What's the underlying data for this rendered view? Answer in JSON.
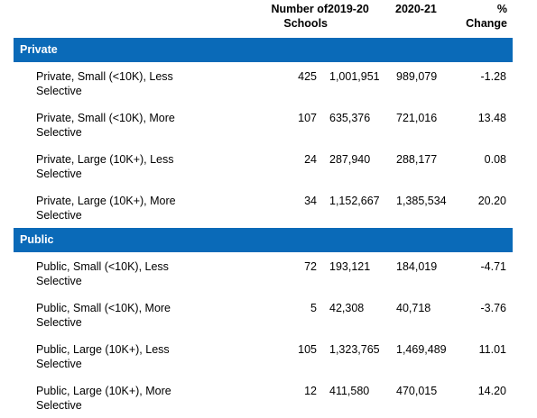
{
  "header": {
    "schools_line1": "Number of",
    "schools_line2": "Schools",
    "y1": "2019-20",
    "y2": "2020-21",
    "pct_line1": "%",
    "pct_line2": "Change"
  },
  "sections": [
    {
      "title": "Private",
      "rows": [
        {
          "label": "Private, Small (<10K), Less Selective",
          "schools": "425",
          "y1": "1,001,951",
          "y2": "989,079",
          "pct": "-1.28"
        },
        {
          "label": "Private, Small (<10K), More Selective",
          "schools": "107",
          "y1": "635,376",
          "y2": "721,016",
          "pct": "13.48"
        },
        {
          "label": "Private, Large (10K+), Less Selective",
          "schools": "24",
          "y1": "287,940",
          "y2": "288,177",
          "pct": "0.08"
        },
        {
          "label": "Private, Large (10K+), More Selective",
          "schools": "34",
          "y1": "1,152,667",
          "y2": "1,385,534",
          "pct": "20.20"
        }
      ]
    },
    {
      "title": "Public",
      "rows": [
        {
          "label": "Public, Small (<10K), Less Selective",
          "schools": "72",
          "y1": "193,121",
          "y2": "184,019",
          "pct": "-4.71"
        },
        {
          "label": "Public, Small (<10K), More Selective",
          "schools": "5",
          "y1": "42,308",
          "y2": "40,718",
          "pct": "-3.76"
        },
        {
          "label": "Public, Large (10K+), Less Selective",
          "schools": "105",
          "y1": "1,323,765",
          "y2": "1,469,489",
          "pct": "11.01"
        },
        {
          "label": "Public, Large (10K+), More Selective",
          "schools": "12",
          "y1": "411,580",
          "y2": "470,015",
          "pct": "14.20"
        }
      ]
    }
  ],
  "colors": {
    "band": "#0a6ab8",
    "band_text": "#ffffff"
  }
}
